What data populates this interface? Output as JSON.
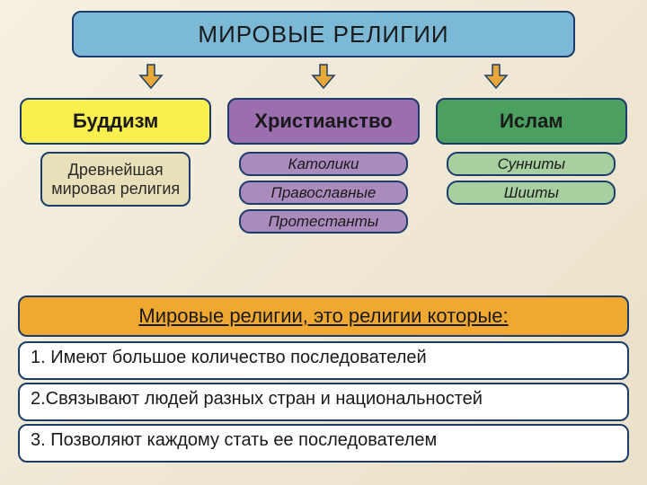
{
  "title": {
    "text": "МИРОВЫЕ РЕЛИГИИ",
    "bg_color": "#7cb9d6",
    "border_color": "#1a3d6b",
    "text_color": "#1a1a1a",
    "border_width": 2
  },
  "arrow": {
    "fill": "#e8a838",
    "stroke": "#1a3d6b",
    "stroke_width": 1.5
  },
  "religions": [
    {
      "name": "Буддизм",
      "box_bg": "#f9f050",
      "box_border": "#1a3d6b",
      "text_color": "#1a1a1a",
      "descr": {
        "text": "Древнейшая мировая религия",
        "bg": "#e8e0b8",
        "border": "#1a3d6b",
        "text_color": "#2a2a2a"
      },
      "subs": []
    },
    {
      "name": "Христианство",
      "box_bg": "#9b6eb0",
      "box_border": "#1a3d6b",
      "text_color": "#1a1a1a",
      "descr": null,
      "subs": [
        {
          "text": "Католики",
          "bg": "#ab8bbd",
          "border": "#1a3d6b",
          "text_color": "#1a1a1a"
        },
        {
          "text": "Православные",
          "bg": "#ab8bbd",
          "border": "#1a3d6b",
          "text_color": "#1a1a1a"
        },
        {
          "text": "Протестанты",
          "bg": "#ab8bbd",
          "border": "#1a3d6b",
          "text_color": "#1a1a1a"
        }
      ]
    },
    {
      "name": "Ислам",
      "box_bg": "#4ba060",
      "box_border": "#1a3d6b",
      "text_color": "#1a1a1a",
      "descr": null,
      "subs": [
        {
          "text": "Сунниты",
          "bg": "#a8cfa0",
          "border": "#1a3d6b",
          "text_color": "#1a1a1a"
        },
        {
          "text": "Шииты",
          "bg": "#a8cfa0",
          "border": "#1a3d6b",
          "text_color": "#1a1a1a"
        }
      ]
    }
  ],
  "definition": {
    "title": {
      "text": "Мировые религии, это религии которые:",
      "bg": "#f0a830",
      "border": "#1a3d6b",
      "text_color": "#1a1a1a"
    },
    "items": [
      {
        "text": "1. Имеют большое количество последователей",
        "bg": "#ffffff",
        "border": "#1a3d6b",
        "text_color": "#1a1a1a"
      },
      {
        "text": "2.Связывают людей разных стран и национальностей",
        "bg": "#ffffff",
        "border": "#1a3d6b",
        "text_color": "#1a1a1a"
      },
      {
        "text": "3. Позволяют каждому стать ее последователем",
        "bg": "#ffffff",
        "border": "#1a3d6b",
        "text_color": "#1a1a1a"
      }
    ]
  },
  "box_border_width": 2,
  "box_border_radius": 10
}
